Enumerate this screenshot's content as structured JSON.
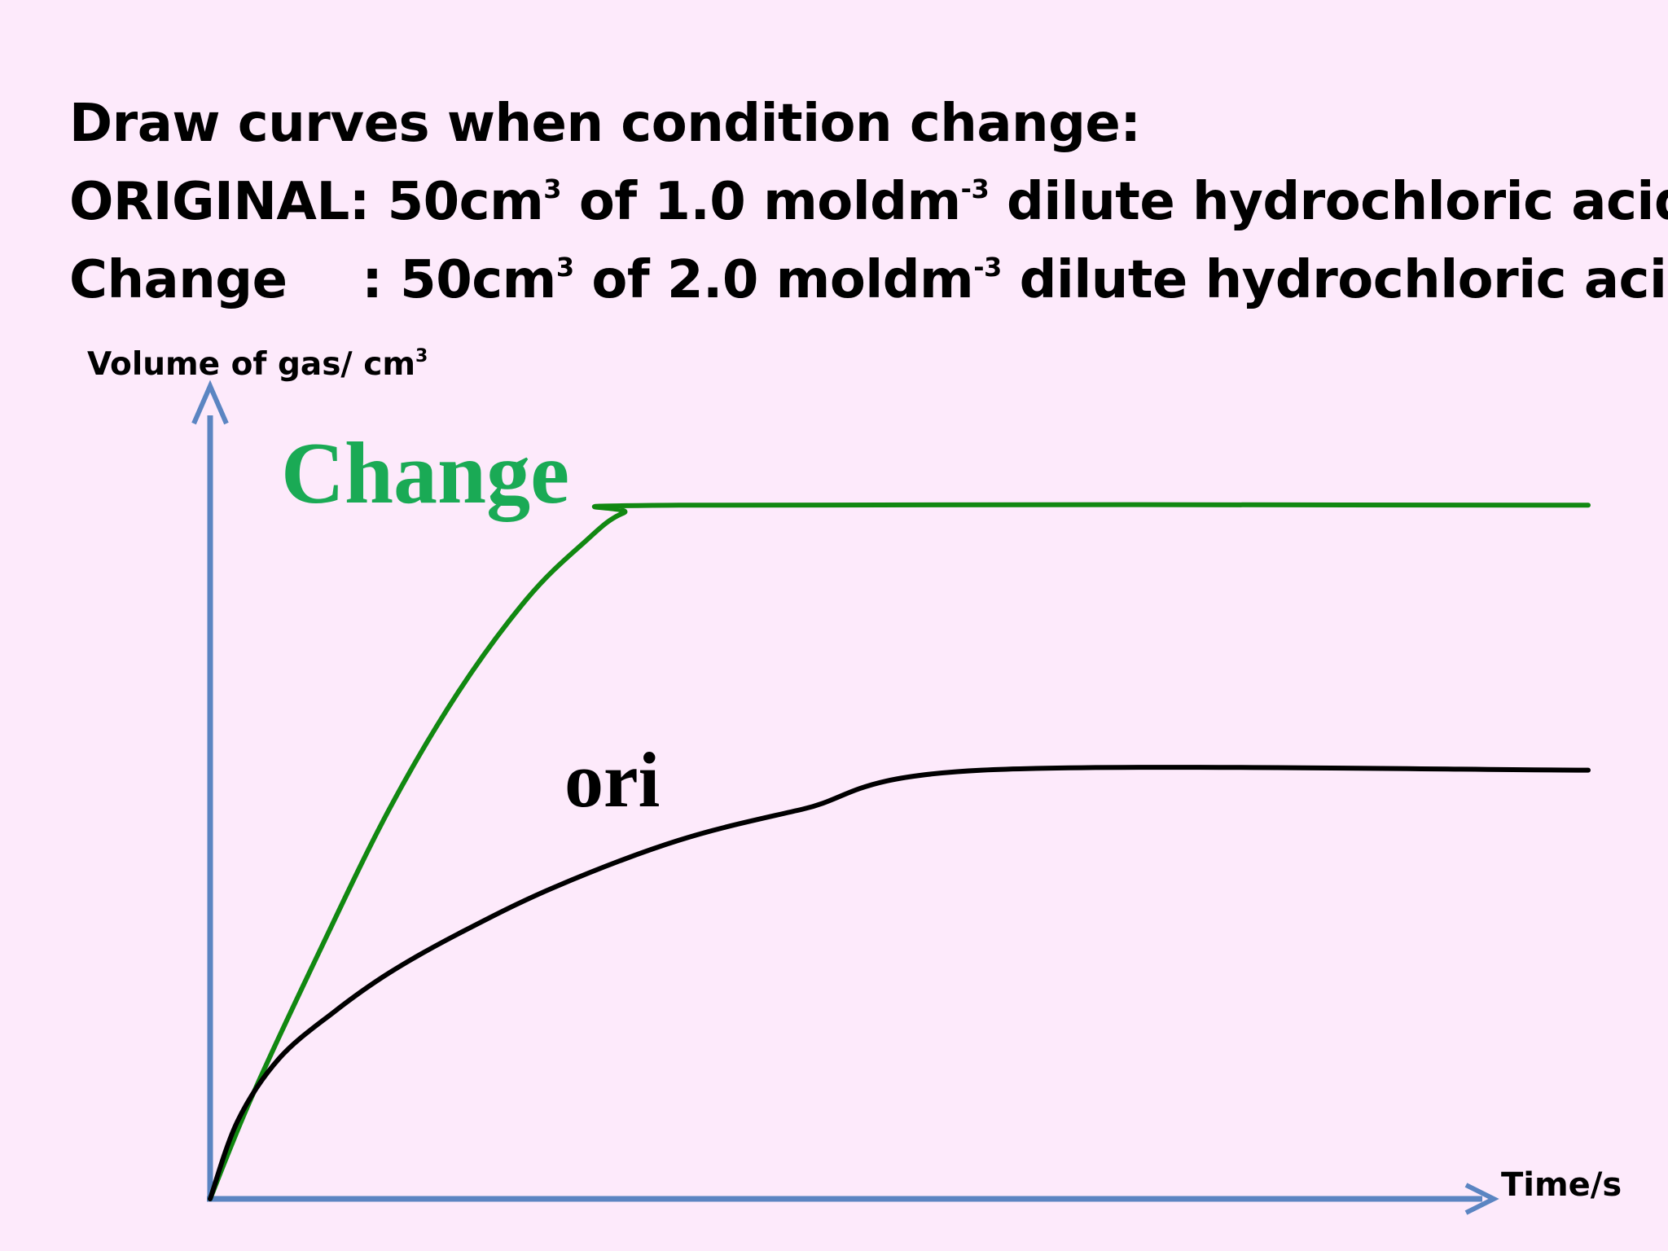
{
  "heading": {
    "line1": "Draw curves when condition change:",
    "original": {
      "label": "ORIGINAL:",
      "amount": "50cm",
      "amount_sup": "3",
      "middle": "of 1.0 moldm",
      "conc_sup": "-3",
      "rest": "dilute hydrochloric acid"
    },
    "change": {
      "label": "Change",
      "colon": ":",
      "amount": "50cm",
      "amount_sup": "3",
      "middle": "of 2.0 moldm",
      "conc_sup": "-3",
      "rest": "dilute hydrochloric acid"
    }
  },
  "chart_data": {
    "type": "line",
    "title": "",
    "xlabel": "Time/s",
    "ylabel": "Volume of gas/ cm",
    "ylabel_sup": "3",
    "xlim": [
      0,
      100
    ],
    "ylim": [
      0,
      100
    ],
    "grid": false,
    "legend": "none",
    "series": [
      {
        "name": "Change",
        "color": "#118811",
        "label_color": "#1aaa55",
        "points": [
          [
            0,
            0
          ],
          [
            3,
            13
          ],
          [
            8,
            32
          ],
          [
            13,
            50
          ],
          [
            18,
            65
          ],
          [
            23,
            77
          ],
          [
            27,
            84
          ],
          [
            30,
            88
          ],
          [
            34,
            89
          ],
          [
            100,
            89
          ]
        ]
      },
      {
        "name": "ori",
        "color": "#000000",
        "label_color": "#000000",
        "points": [
          [
            0,
            0
          ],
          [
            2,
            10
          ],
          [
            5,
            18
          ],
          [
            9,
            24
          ],
          [
            13,
            29
          ],
          [
            18,
            34
          ],
          [
            25,
            40
          ],
          [
            34,
            46
          ],
          [
            43,
            50
          ],
          [
            56,
            55
          ],
          [
            100,
            55
          ]
        ]
      }
    ],
    "axis_color": "#5b85c2"
  }
}
